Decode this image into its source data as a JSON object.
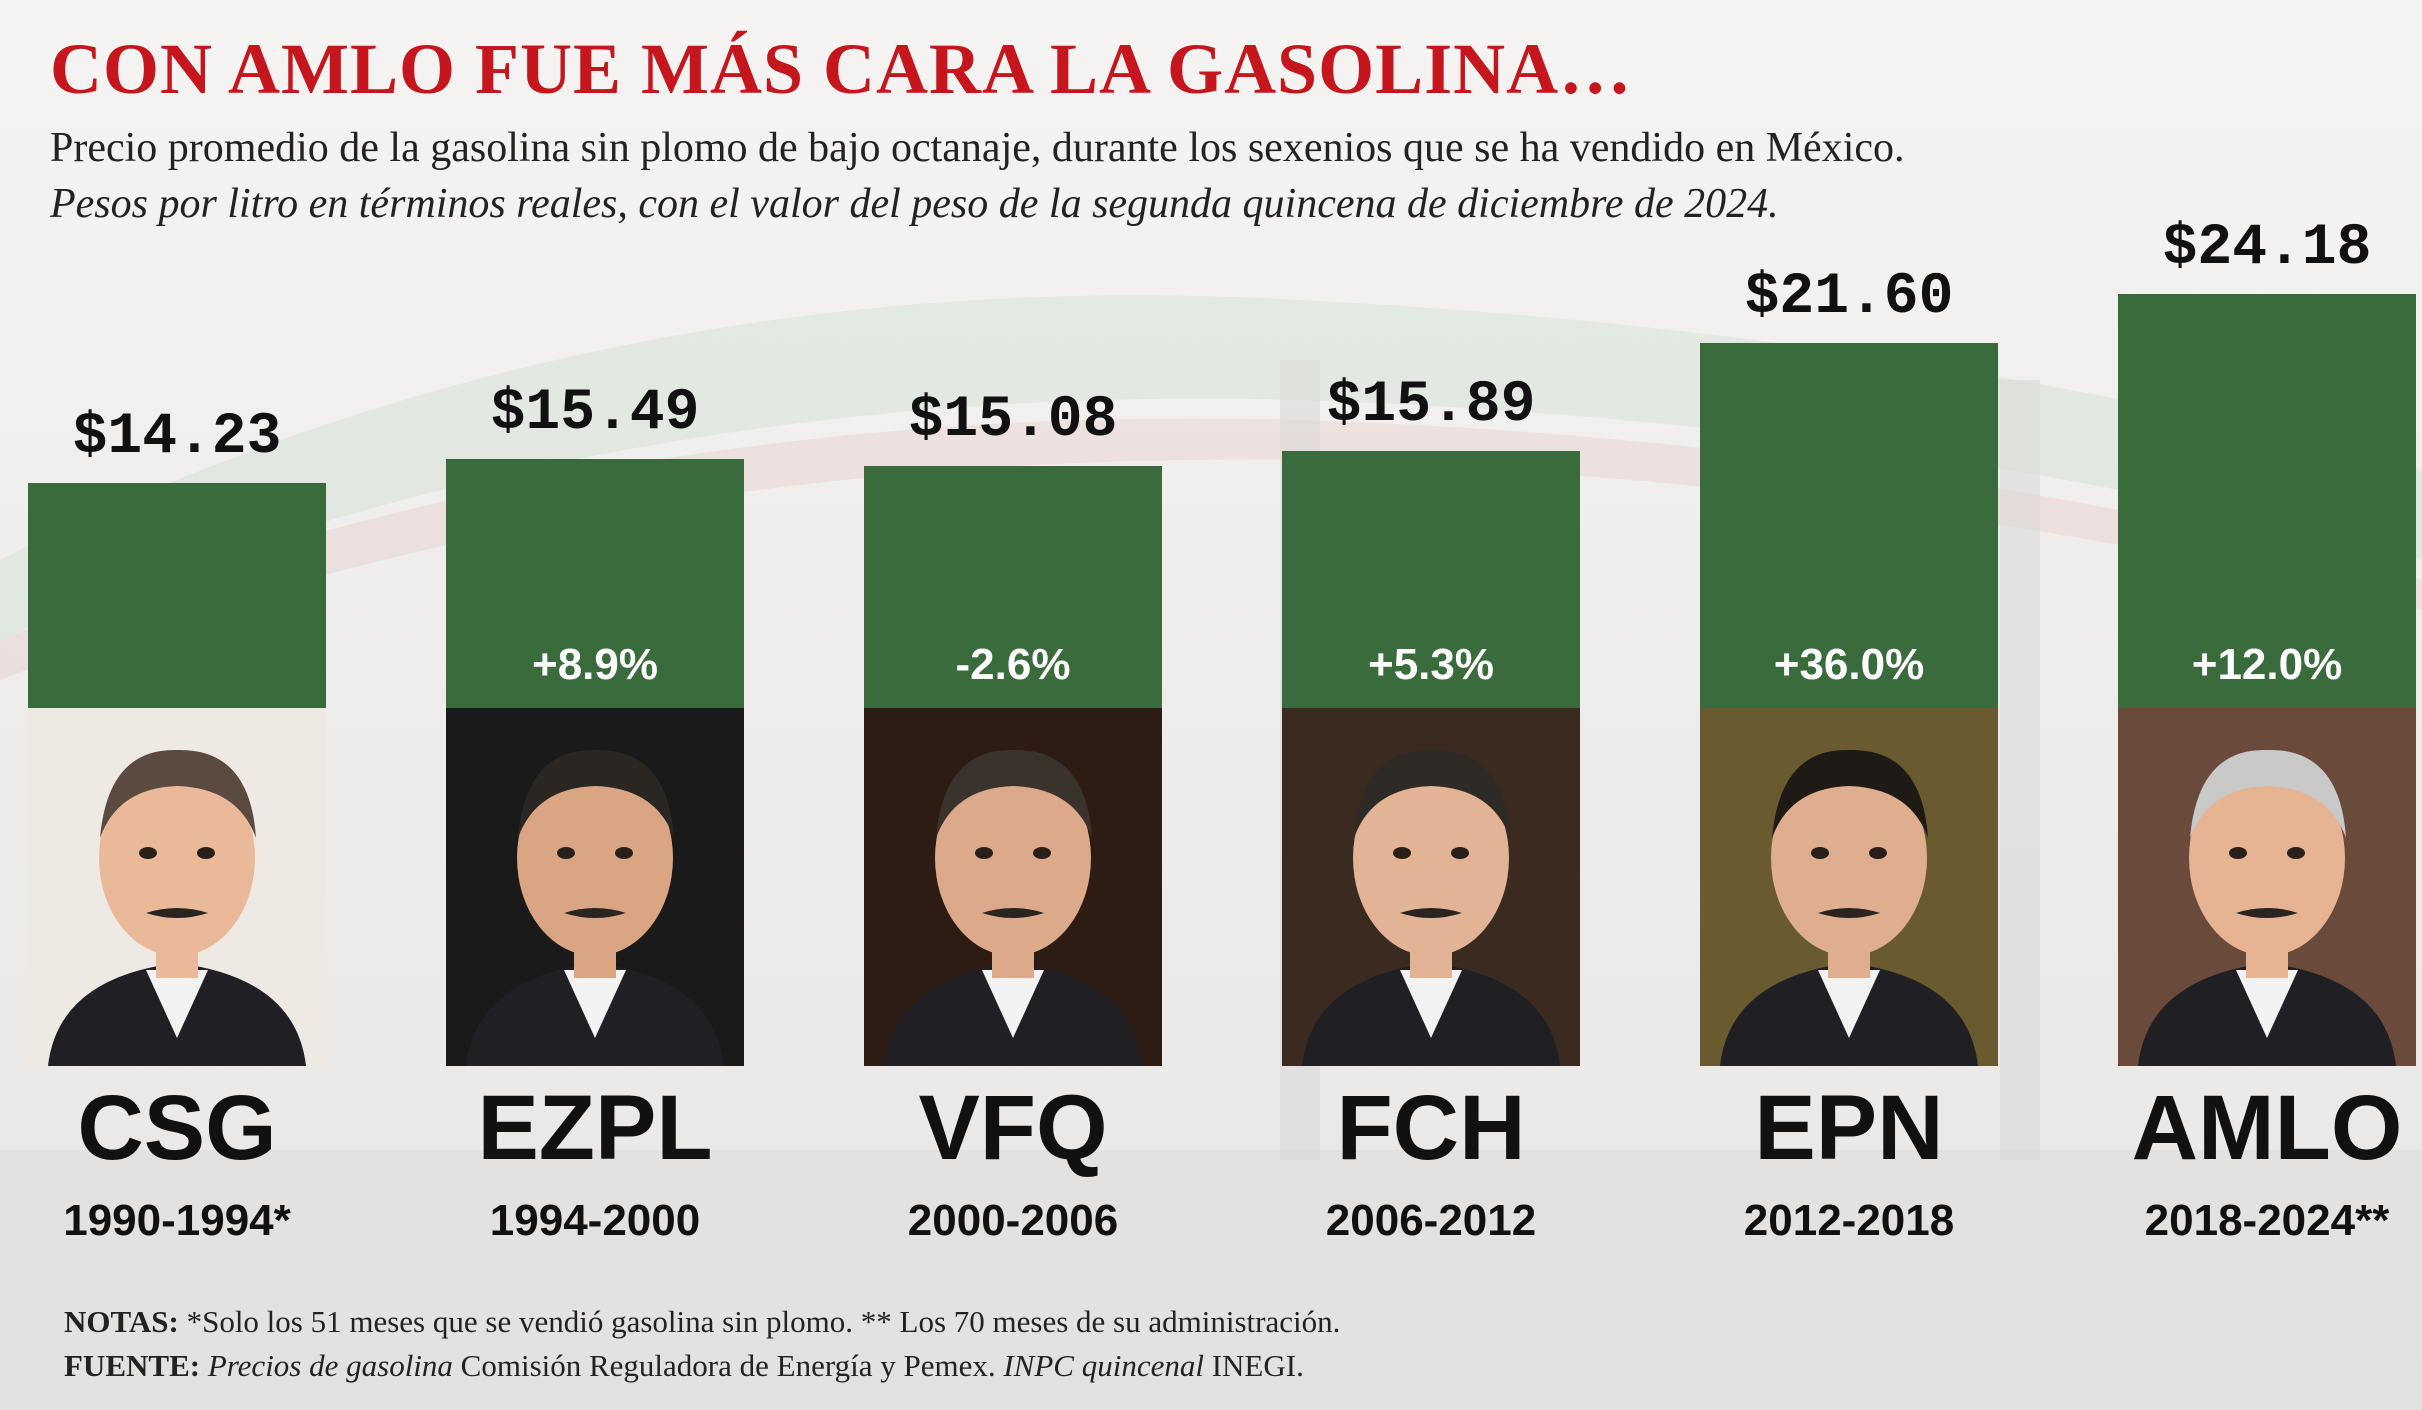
{
  "header": {
    "title": "CON AMLO FUE MÁS CARA LA GASOLINA…",
    "subtitle": "Precio promedio de la gasolina sin plomo de bajo octanaje, durante los sexenios que se ha vendido en México.",
    "subtitle_italic": "Pesos por litro en términos reales, con el valor del peso de la segunda quincena de diciembre de 2024."
  },
  "chart_data": {
    "type": "bar",
    "categories": [
      "CSG",
      "EZPL",
      "VFQ",
      "FCH",
      "EPN",
      "AMLO"
    ],
    "periods": [
      "1990-1994*",
      "1994-2000",
      "2000-2006",
      "2006-2012",
      "2012-2018",
      "2018-2024**"
    ],
    "values": [
      14.23,
      15.49,
      15.08,
      15.89,
      21.6,
      24.18
    ],
    "value_labels": [
      "$14.23",
      "$15.49",
      "$15.08",
      "$15.89",
      "$21.60",
      "$24.18"
    ],
    "change_labels": [
      "",
      "+8.9%",
      "-2.6%",
      "+5.3%",
      "+36.0%",
      "+12.0%"
    ],
    "bar_color": "#3a6b3c",
    "grid": false,
    "legend": "none"
  },
  "notes": {
    "label": "NOTAS:",
    "text": " *Solo los 51 meses que se vendió gasolina sin plomo. ** Los 70 meses de su administración."
  },
  "source": {
    "label": "FUENTE:",
    "italic1": "Precios de gasolina",
    "text1": " Comisión Reguladora de Energía y Pemex. ",
    "italic2": "INPC quincenal",
    "text2": " INEGI."
  },
  "colors": {
    "title": "#c4161c",
    "bar": "#3a6b3c"
  }
}
